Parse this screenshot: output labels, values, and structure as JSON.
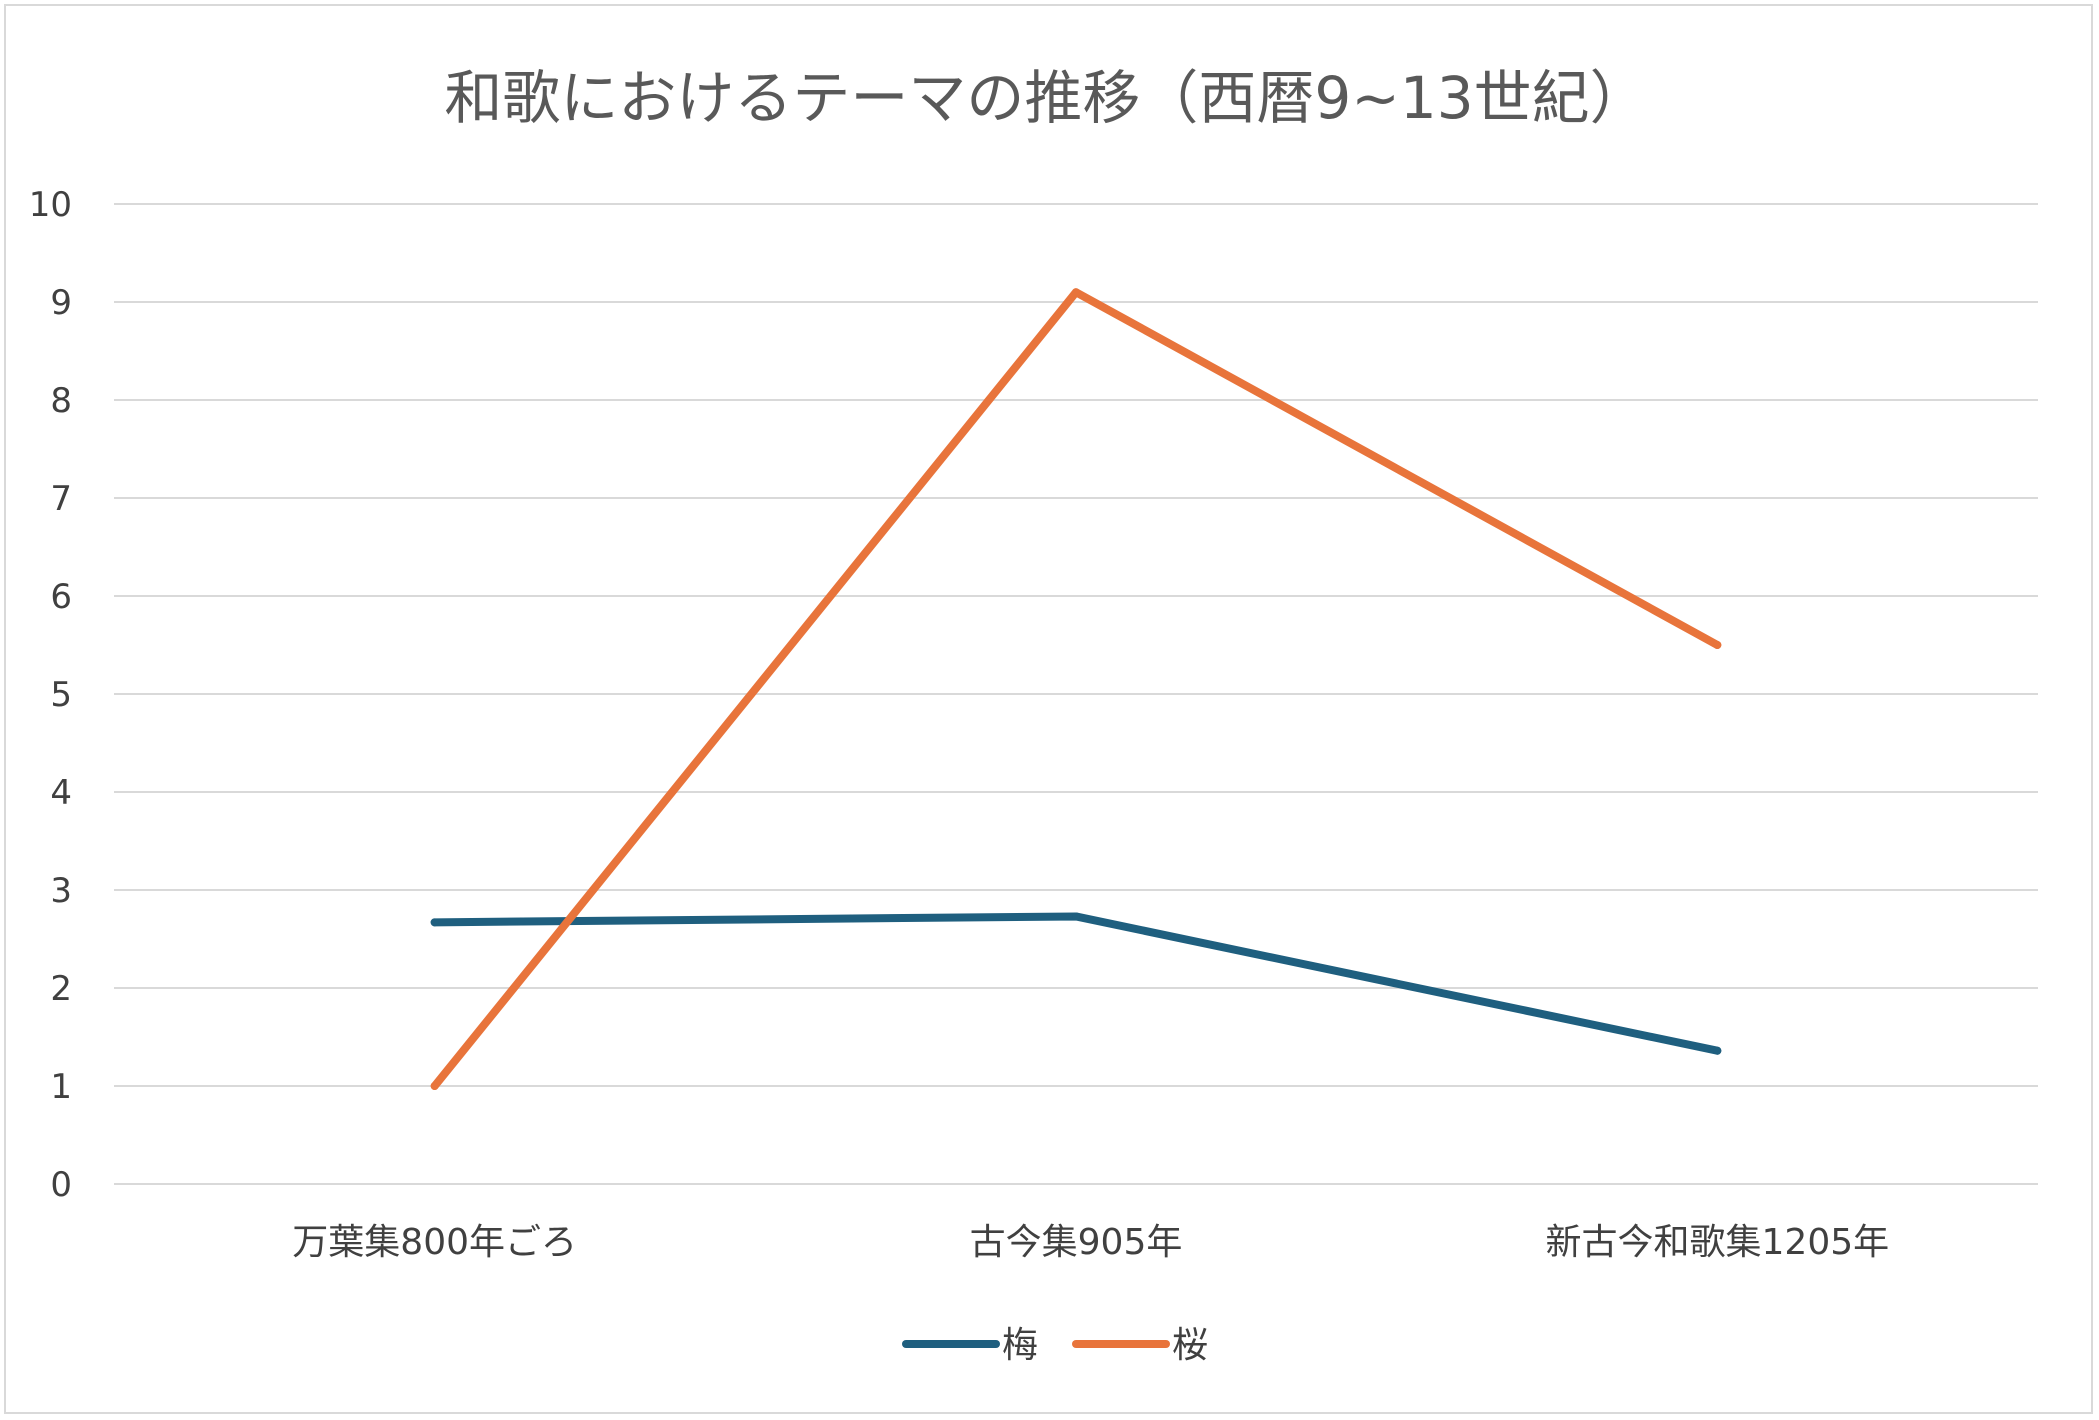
{
  "chart_data": {
    "type": "line",
    "title": "和歌におけるテーマの推移（西暦9~13世紀）",
    "categories": [
      "万葉集800年ごろ",
      "古今集905年",
      "新古今和歌集1205年"
    ],
    "series": [
      {
        "name": "梅",
        "color": "#1f5f7f",
        "values": [
          2.67,
          2.73,
          1.36
        ]
      },
      {
        "name": "桜",
        "color": "#e8743b",
        "values": [
          1.0,
          9.1,
          5.5
        ]
      }
    ],
    "ylim": [
      0,
      10
    ],
    "yticks": [
      "0",
      "1",
      "2",
      "3",
      "4",
      "5",
      "6",
      "7",
      "8",
      "9",
      "10"
    ],
    "xlabel": "",
    "ylabel": "",
    "grid": true,
    "legend_position": "bottom"
  }
}
